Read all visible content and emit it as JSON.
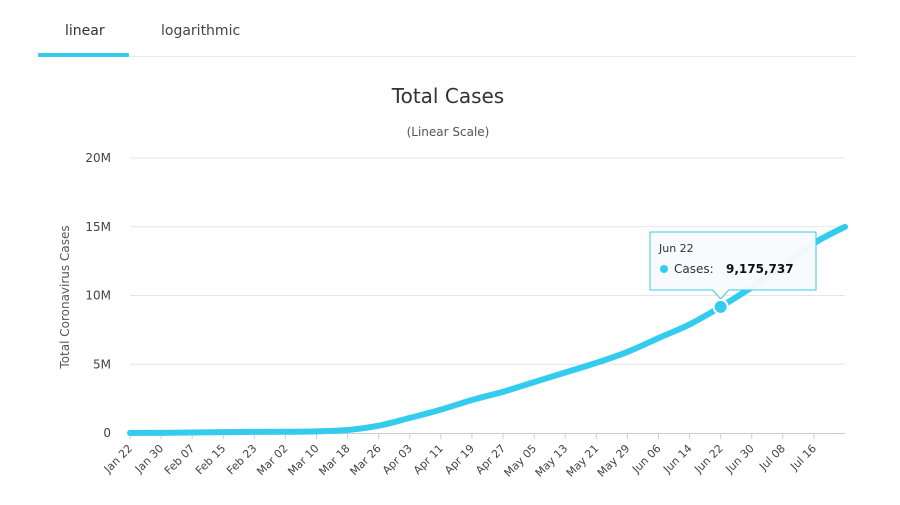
{
  "tabs": [
    {
      "label": "linear",
      "active": true
    },
    {
      "label": "logarithmic",
      "active": false
    }
  ],
  "colors": {
    "accent": "#33ccee",
    "grid": "#e6e6e6",
    "axis": "#c0d0e0"
  },
  "chart_data": {
    "type": "line",
    "title": "Total Cases",
    "subtitle": "(Linear Scale)",
    "ylabel": "Total Coronavirus Cases",
    "xlabel": "",
    "ylim": [
      0,
      20000000
    ],
    "yticks": [
      {
        "value": 0,
        "label": "0"
      },
      {
        "value": 5000000,
        "label": "5M"
      },
      {
        "value": 10000000,
        "label": "10M"
      },
      {
        "value": 15000000,
        "label": "15M"
      },
      {
        "value": 20000000,
        "label": "20M"
      }
    ],
    "x_day_range": [
      0,
      184
    ],
    "xticks": [
      {
        "day": 0,
        "label": "Jan 22"
      },
      {
        "day": 8,
        "label": "Jan 30"
      },
      {
        "day": 16,
        "label": "Feb 07"
      },
      {
        "day": 24,
        "label": "Feb 15"
      },
      {
        "day": 32,
        "label": "Feb 23"
      },
      {
        "day": 40,
        "label": "Mar 02"
      },
      {
        "day": 48,
        "label": "Mar 10"
      },
      {
        "day": 56,
        "label": "Mar 18"
      },
      {
        "day": 64,
        "label": "Mar 26"
      },
      {
        "day": 72,
        "label": "Apr 03"
      },
      {
        "day": 80,
        "label": "Apr 11"
      },
      {
        "day": 88,
        "label": "Apr 19"
      },
      {
        "day": 96,
        "label": "Apr 27"
      },
      {
        "day": 104,
        "label": "May 05"
      },
      {
        "day": 112,
        "label": "May 13"
      },
      {
        "day": 120,
        "label": "May 21"
      },
      {
        "day": 128,
        "label": "May 29"
      },
      {
        "day": 136,
        "label": "Jun 06"
      },
      {
        "day": 144,
        "label": "Jun 14"
      },
      {
        "day": 152,
        "label": "Jun 22"
      },
      {
        "day": 160,
        "label": "Jun 30"
      },
      {
        "day": 168,
        "label": "Jul 08"
      },
      {
        "day": 176,
        "label": "Jul 16"
      }
    ],
    "series": [
      {
        "name": "Cases",
        "points": [
          {
            "day": 0,
            "value": 555
          },
          {
            "day": 8,
            "value": 9800
          },
          {
            "day": 16,
            "value": 34000
          },
          {
            "day": 24,
            "value": 69000
          },
          {
            "day": 32,
            "value": 79000
          },
          {
            "day": 40,
            "value": 90000
          },
          {
            "day": 48,
            "value": 119000
          },
          {
            "day": 56,
            "value": 218000
          },
          {
            "day": 64,
            "value": 530000
          },
          {
            "day": 72,
            "value": 1100000
          },
          {
            "day": 80,
            "value": 1700000
          },
          {
            "day": 88,
            "value": 2400000
          },
          {
            "day": 96,
            "value": 3000000
          },
          {
            "day": 104,
            "value": 3700000
          },
          {
            "day": 112,
            "value": 4400000
          },
          {
            "day": 120,
            "value": 5100000
          },
          {
            "day": 128,
            "value": 5900000
          },
          {
            "day": 136,
            "value": 6900000
          },
          {
            "day": 144,
            "value": 7900000
          },
          {
            "day": 152,
            "value": 9175737
          },
          {
            "day": 160,
            "value": 10600000
          },
          {
            "day": 168,
            "value": 12100000
          },
          {
            "day": 176,
            "value": 13800000
          },
          {
            "day": 184,
            "value": 15000000
          }
        ]
      }
    ],
    "tooltip": {
      "day": 152,
      "date": "Jun 22",
      "series_label": "Cases:",
      "value_label": "9,175,737",
      "value": 9175737
    }
  }
}
